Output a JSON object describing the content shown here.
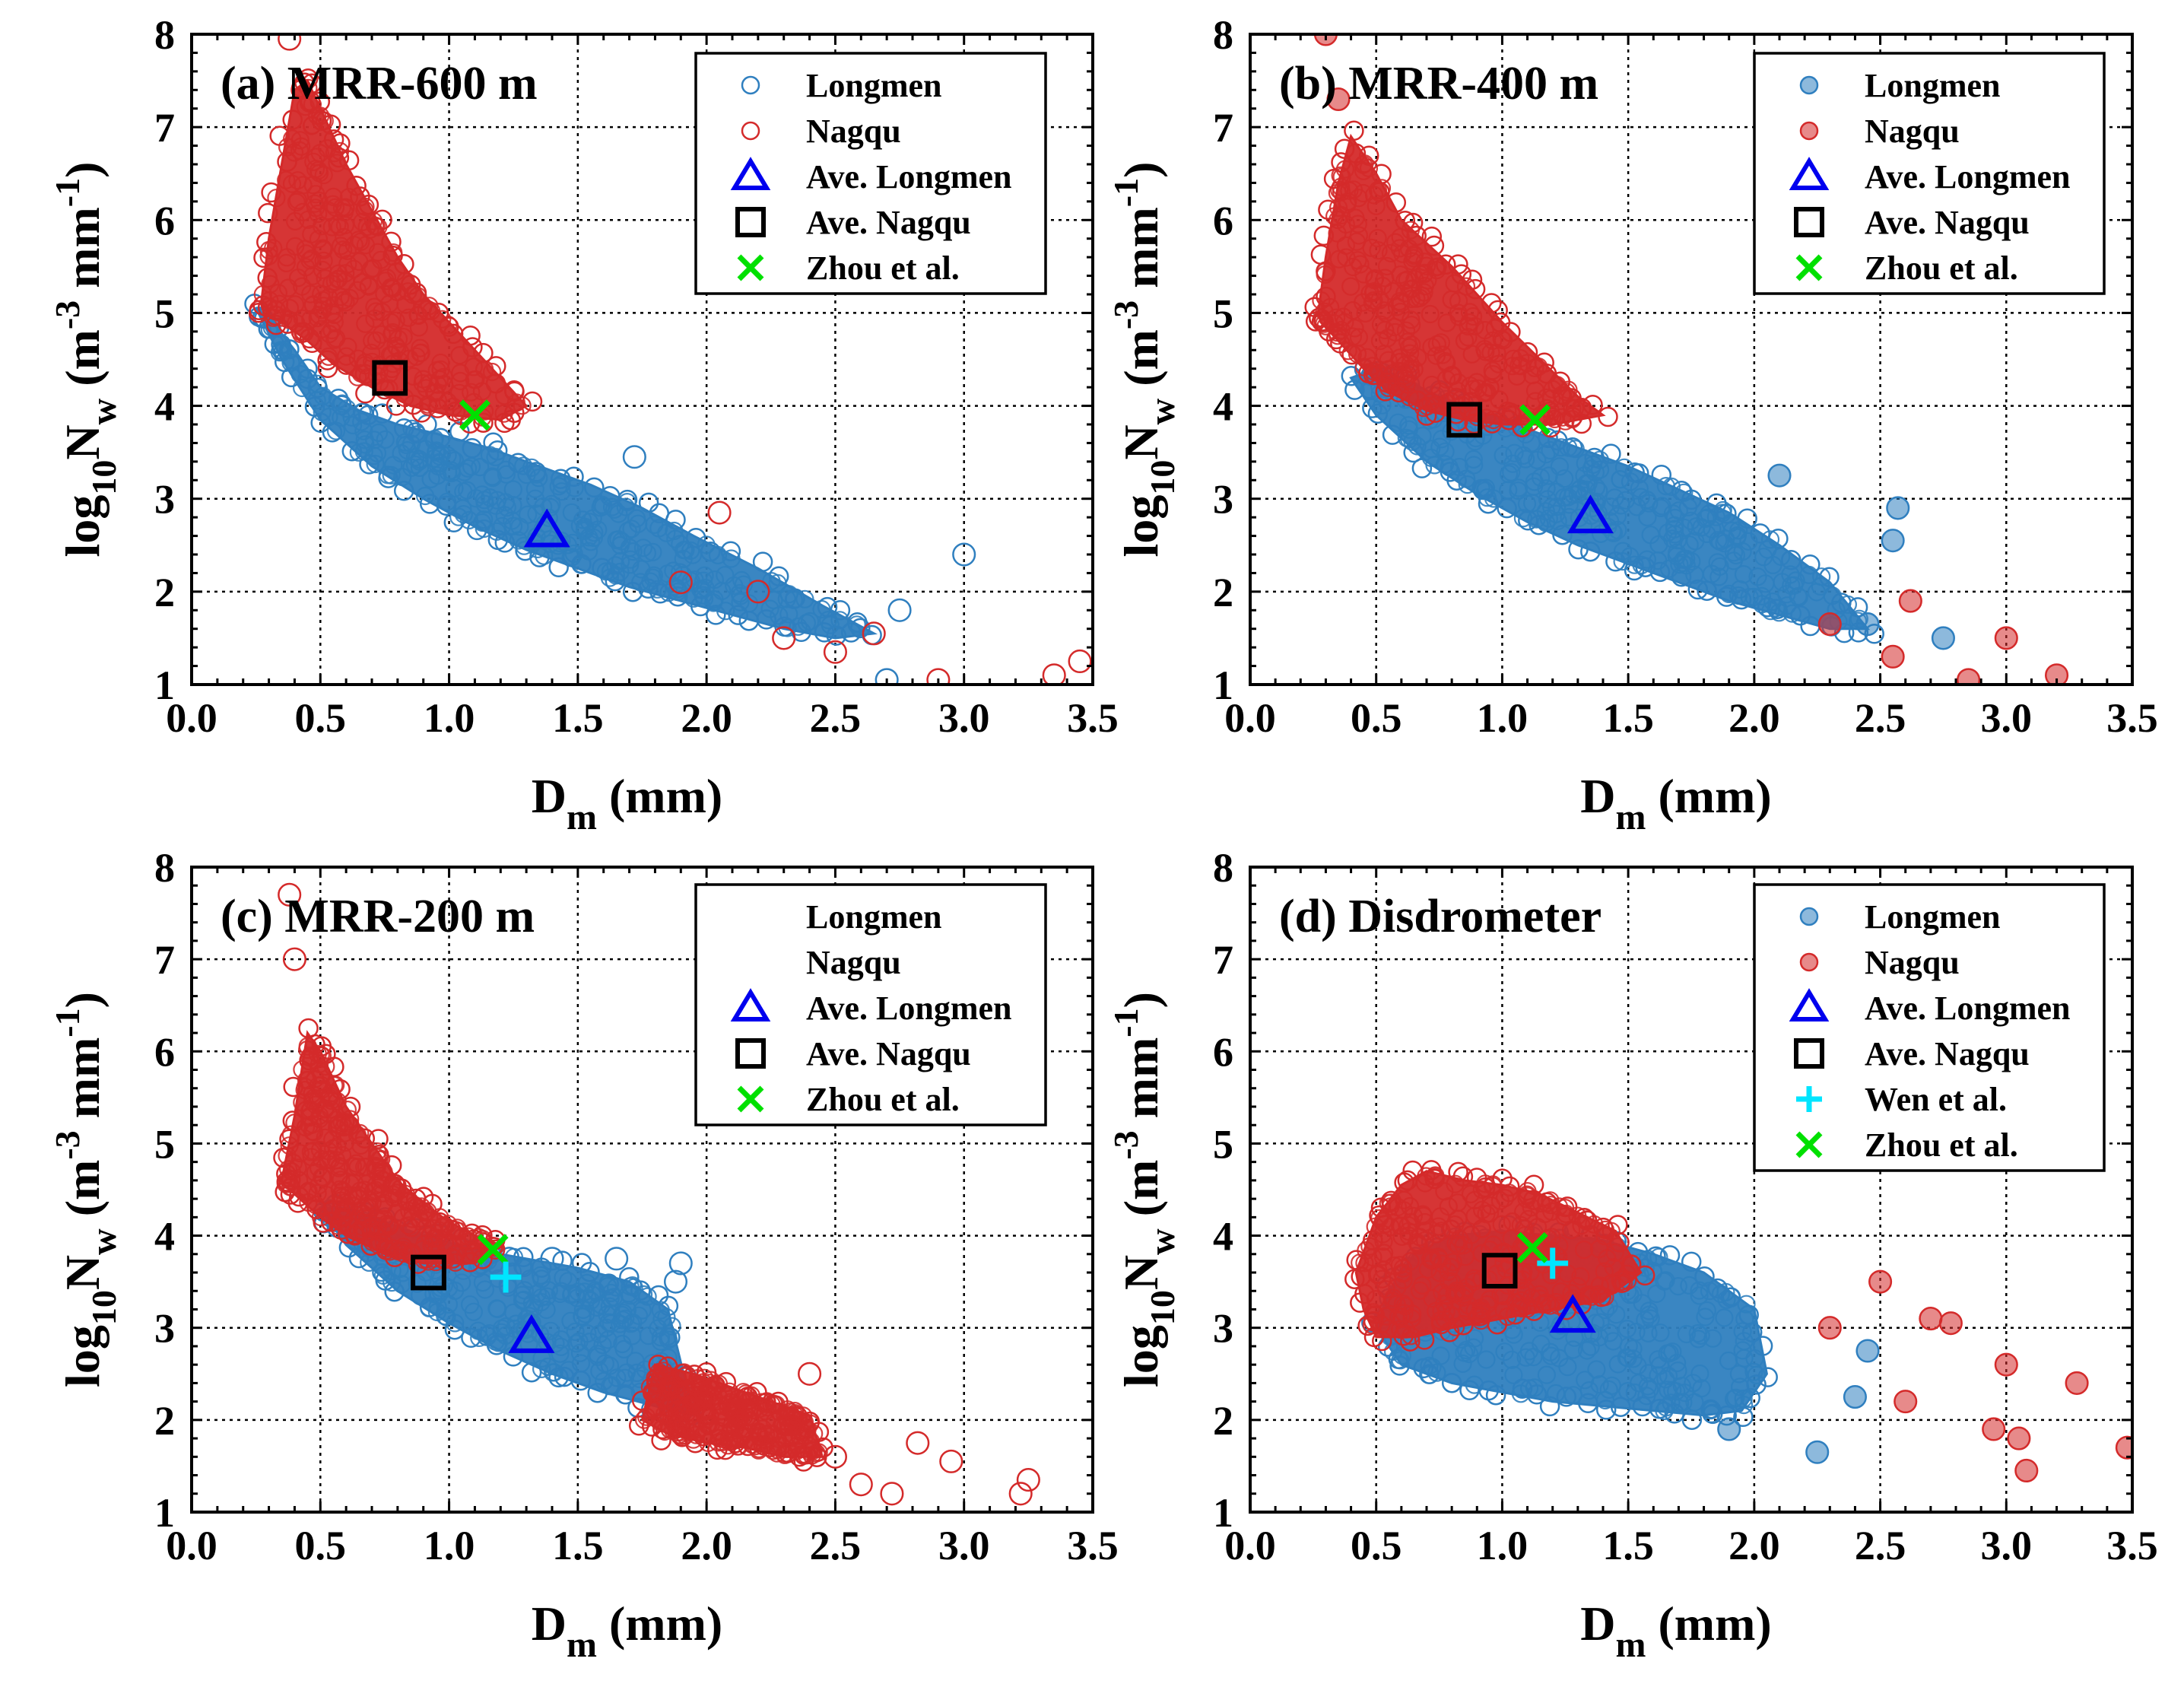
{
  "colors": {
    "longmen": "#2f7fbf",
    "nagqu": "#d42a2a",
    "ave_longmen": "#0000ee",
    "ave_nagqu": "#000000",
    "zhou": "#00e000",
    "wen": "#00e5ff"
  },
  "chart_data": [
    {
      "type": "scatter",
      "title": "(a) MRR-600 m",
      "xlabel": "D_m (mm)",
      "ylabel": "log10 N_w (m^-3 mm^-1)",
      "xlim": [
        0.0,
        3.5
      ],
      "ylim": [
        1,
        8
      ],
      "x_ticks": [
        "0.0",
        "0.5",
        "1.0",
        "1.5",
        "2.0",
        "2.5",
        "3.0",
        "3.5"
      ],
      "y_ticks": [
        "1",
        "2",
        "3",
        "4",
        "5",
        "6",
        "7",
        "8"
      ],
      "grid": true,
      "legend_position": "top-right",
      "legend": [
        "Longmen",
        "Nagqu",
        "Ave. Longmen",
        "Ave. Nagqu",
        "Zhou et al."
      ],
      "series": [
        {
          "name": "Longmen",
          "marker": "open-circle",
          "clouds": [
            {
              "x": [
                0.25,
                0.35,
                0.5,
                0.7,
                0.9,
                1.1,
                1.3,
                1.5,
                1.7,
                1.9,
                2.1,
                2.3,
                2.5,
                2.65,
                2.45,
                2.2,
                1.95,
                1.75,
                1.55,
                1.35,
                1.15,
                0.95,
                0.8,
                0.65,
                0.5,
                0.4,
                0.3
              ],
              "y": [
                5.05,
                4.5,
                3.85,
                3.35,
                3.0,
                2.7,
                2.45,
                2.25,
                2.05,
                1.9,
                1.75,
                1.6,
                1.5,
                1.55,
                1.85,
                2.25,
                2.6,
                2.9,
                3.15,
                3.35,
                3.55,
                3.7,
                3.8,
                3.95,
                4.2,
                4.6,
                4.95
              ]
            }
          ],
          "extra_points": [
            {
              "x": 3.0,
              "y": 2.4
            },
            {
              "x": 2.75,
              "y": 1.8
            },
            {
              "x": 1.72,
              "y": 3.45
            },
            {
              "x": 2.7,
              "y": 1.05
            }
          ]
        },
        {
          "name": "Nagqu",
          "marker": "open-circle",
          "clouds": [
            {
              "x": [
                0.27,
                0.3,
                0.35,
                0.4,
                0.45,
                0.5,
                0.55,
                0.6,
                0.7,
                0.8,
                0.9,
                1.0,
                1.1,
                1.2,
                1.3,
                1.2,
                1.0,
                0.85,
                0.7,
                0.55,
                0.45,
                0.35,
                0.28
              ],
              "y": [
                5.1,
                5.8,
                6.6,
                7.4,
                7.5,
                7.2,
                6.9,
                6.6,
                6.1,
                5.6,
                5.2,
                4.9,
                4.6,
                4.3,
                4.0,
                3.85,
                3.9,
                4.0,
                4.2,
                4.45,
                4.7,
                4.9,
                5.0
              ]
            }
          ],
          "extra_points": [
            {
              "x": 0.38,
              "y": 7.95
            },
            {
              "x": 2.05,
              "y": 2.85
            },
            {
              "x": 2.3,
              "y": 1.5
            },
            {
              "x": 2.5,
              "y": 1.35
            },
            {
              "x": 2.65,
              "y": 1.55
            },
            {
              "x": 2.9,
              "y": 1.05
            },
            {
              "x": 3.35,
              "y": 1.1
            },
            {
              "x": 3.45,
              "y": 1.25
            },
            {
              "x": 2.2,
              "y": 2.0
            },
            {
              "x": 1.9,
              "y": 2.1
            }
          ]
        },
        {
          "name": "Ave. Longmen",
          "marker": "triangle",
          "x": [
            1.38
          ],
          "y": [
            2.65
          ]
        },
        {
          "name": "Ave. Nagqu",
          "marker": "square",
          "x": [
            0.77
          ],
          "y": [
            4.3
          ]
        },
        {
          "name": "Zhou et al.",
          "marker": "x",
          "x": [
            1.1
          ],
          "y": [
            3.9
          ]
        }
      ]
    },
    {
      "type": "scatter",
      "title": "(b) MRR-400 m",
      "xlabel": "D_m (mm)",
      "ylabel": "log10 N_w (m^-3 mm^-1)",
      "xlim": [
        0.0,
        3.5
      ],
      "ylim": [
        1,
        8
      ],
      "x_ticks": [
        "0.0",
        "0.5",
        "1.0",
        "1.5",
        "2.0",
        "2.5",
        "3.0",
        "3.5"
      ],
      "y_ticks": [
        "1",
        "2",
        "3",
        "4",
        "5",
        "6",
        "7",
        "8"
      ],
      "grid": true,
      "legend_position": "top-right",
      "legend": [
        "Longmen",
        "Nagqu",
        "Ave. Longmen",
        "Ave. Nagqu",
        "Zhou et al."
      ],
      "series": [
        {
          "name": "Longmen",
          "marker": "filled-circle",
          "clouds": [
            {
              "x": [
                0.4,
                0.5,
                0.7,
                0.9,
                1.1,
                1.3,
                1.5,
                1.7,
                1.9,
                2.1,
                2.3,
                2.45,
                2.3,
                2.1,
                1.9,
                1.7,
                1.5,
                1.3,
                1.1,
                0.9,
                0.75,
                0.6,
                0.5
              ],
              "y": [
                4.3,
                3.9,
                3.4,
                3.05,
                2.75,
                2.5,
                2.3,
                2.1,
                1.9,
                1.75,
                1.6,
                1.6,
                2.1,
                2.5,
                2.85,
                3.1,
                3.35,
                3.55,
                3.75,
                3.95,
                4.1,
                4.3,
                4.4
              ]
            }
          ],
          "extra_points": [
            {
              "x": 2.1,
              "y": 3.25
            },
            {
              "x": 2.55,
              "y": 2.55
            },
            {
              "x": 2.57,
              "y": 2.9
            },
            {
              "x": 2.75,
              "y": 1.5
            },
            {
              "x": 2.45,
              "y": 1.65
            }
          ]
        },
        {
          "name": "Nagqu",
          "marker": "filled-circle",
          "clouds": [
            {
              "x": [
                0.27,
                0.3,
                0.35,
                0.4,
                0.5,
                0.6,
                0.7,
                0.8,
                0.9,
                1.0,
                1.15,
                1.3,
                1.4,
                1.2,
                1.0,
                0.85,
                0.7,
                0.55,
                0.45,
                0.35,
                0.28
              ],
              "y": [
                5.0,
                5.6,
                6.4,
                6.9,
                6.5,
                6.0,
                5.75,
                5.5,
                5.2,
                4.9,
                4.5,
                4.1,
                3.9,
                3.8,
                3.8,
                3.85,
                3.95,
                4.15,
                4.4,
                4.7,
                4.9
              ]
            }
          ],
          "extra_points": [
            {
              "x": 0.3,
              "y": 8.0
            },
            {
              "x": 0.35,
              "y": 7.3
            },
            {
              "x": 2.55,
              "y": 1.3
            },
            {
              "x": 2.62,
              "y": 1.9
            },
            {
              "x": 2.85,
              "y": 1.05
            },
            {
              "x": 3.0,
              "y": 1.5
            },
            {
              "x": 3.2,
              "y": 1.1
            },
            {
              "x": 2.3,
              "y": 1.65
            }
          ]
        },
        {
          "name": "Ave. Longmen",
          "marker": "triangle",
          "x": [
            1.35
          ],
          "y": [
            2.8
          ]
        },
        {
          "name": "Ave. Nagqu",
          "marker": "square",
          "x": [
            0.85
          ],
          "y": [
            3.85
          ]
        },
        {
          "name": "Zhou et al.",
          "marker": "x",
          "x": [
            1.13
          ],
          "y": [
            3.85
          ]
        }
      ]
    },
    {
      "type": "scatter",
      "title": "(c) MRR-200 m",
      "xlabel": "D_m (mm)",
      "ylabel": "log10 N_w (m^-3 mm^-1)",
      "xlim": [
        0.0,
        3.5
      ],
      "ylim": [
        1,
        8
      ],
      "x_ticks": [
        "0.0",
        "0.5",
        "1.0",
        "1.5",
        "2.0",
        "2.5",
        "3.0",
        "3.5"
      ],
      "y_ticks": [
        "1",
        "2",
        "3",
        "4",
        "5",
        "6",
        "7",
        "8"
      ],
      "grid": true,
      "legend_position": "top-right",
      "legend": [
        "Longmen",
        "Nagqu",
        "Ave. Longmen",
        "Ave. Nagqu",
        "Zhou et al."
      ],
      "series": [
        {
          "name": "Longmen",
          "marker": "open-circle",
          "clouds": [
            {
              "x": [
                0.5,
                0.6,
                0.8,
                1.0,
                1.2,
                1.4,
                1.6,
                1.8,
                1.95,
                1.85,
                1.7,
                1.5,
                1.3,
                1.1,
                0.9,
                0.75,
                0.6
              ],
              "y": [
                4.3,
                3.9,
                3.4,
                3.05,
                2.75,
                2.5,
                2.3,
                2.15,
                2.05,
                3.2,
                3.5,
                3.65,
                3.75,
                3.85,
                4.0,
                4.15,
                4.3
              ]
            }
          ],
          "extra_points": [
            {
              "x": 1.65,
              "y": 3.75
            },
            {
              "x": 1.9,
              "y": 3.7
            },
            {
              "x": 1.88,
              "y": 3.5
            },
            {
              "x": 1.4,
              "y": 3.75
            }
          ]
        },
        {
          "name": "Nagqu",
          "marker": "open-circle",
          "clouds": [
            {
              "x": [
                0.35,
                0.4,
                0.45,
                0.5,
                0.6,
                0.7,
                0.8,
                0.9,
                1.0,
                1.1,
                1.2,
                1.1,
                0.9,
                0.75,
                0.6,
                0.5,
                0.4,
                0.36
              ],
              "y": [
                4.6,
                5.3,
                6.2,
                6.0,
                5.4,
                5.0,
                4.6,
                4.35,
                4.15,
                4.0,
                3.9,
                3.7,
                3.7,
                3.8,
                4.0,
                4.2,
                4.45,
                4.55
              ]
            },
            {
              "x": [
                1.8,
                1.95,
                2.1,
                2.25,
                2.4,
                2.45,
                2.3,
                2.15,
                2.0,
                1.85,
                1.75
              ],
              "y": [
                2.6,
                2.5,
                2.35,
                2.2,
                2.05,
                1.6,
                1.6,
                1.7,
                1.75,
                1.85,
                2.0
              ]
            }
          ],
          "extra_points": [
            {
              "x": 0.4,
              "y": 7.0
            },
            {
              "x": 0.38,
              "y": 7.7
            },
            {
              "x": 2.5,
              "y": 1.6
            },
            {
              "x": 2.6,
              "y": 1.3
            },
            {
              "x": 2.72,
              "y": 1.2
            },
            {
              "x": 2.82,
              "y": 1.75
            },
            {
              "x": 2.95,
              "y": 1.55
            },
            {
              "x": 3.25,
              "y": 1.35
            },
            {
              "x": 3.22,
              "y": 1.2
            },
            {
              "x": 2.4,
              "y": 2.5
            }
          ]
        },
        {
          "name": "Ave. Longmen",
          "marker": "triangle",
          "x": [
            1.32
          ],
          "y": [
            2.9
          ]
        },
        {
          "name": "Ave. Nagqu",
          "marker": "square",
          "x": [
            0.92
          ],
          "y": [
            3.6
          ]
        },
        {
          "name": "Zhou et al.",
          "marker": "x",
          "x": [
            1.17
          ],
          "y": [
            3.85
          ]
        },
        {
          "name": "Wen et al.",
          "marker": "plus",
          "x": [
            1.22
          ],
          "y": [
            3.55
          ]
        }
      ]
    },
    {
      "type": "scatter",
      "title": "(d) Disdrometer",
      "xlabel": "D_m (mm)",
      "ylabel": "log10 N_w (m^-3 mm^-1)",
      "xlim": [
        0.0,
        3.5
      ],
      "ylim": [
        1,
        8
      ],
      "x_ticks": [
        "0.0",
        "0.5",
        "1.0",
        "1.5",
        "2.0",
        "2.5",
        "3.0",
        "3.5"
      ],
      "y_ticks": [
        "1",
        "2",
        "3",
        "4",
        "5",
        "6",
        "7",
        "8"
      ],
      "grid": true,
      "legend_position": "top-right",
      "legend": [
        "Longmen",
        "Nagqu",
        "Ave. Longmen",
        "Ave. Nagqu",
        "Wen et al.",
        "Zhou et al."
      ],
      "series": [
        {
          "name": "Longmen",
          "marker": "filled-circle",
          "clouds": [
            {
              "x": [
                0.5,
                0.6,
                0.8,
                1.0,
                1.2,
                1.4,
                1.6,
                1.8,
                1.95,
                2.05,
                2.0,
                1.8,
                1.6,
                1.4,
                1.2,
                1.0,
                0.8,
                0.65,
                0.55
              ],
              "y": [
                3.0,
                2.6,
                2.4,
                2.3,
                2.2,
                2.15,
                2.1,
                2.05,
                2.1,
                2.5,
                3.2,
                3.6,
                3.8,
                3.95,
                4.0,
                4.05,
                4.0,
                3.8,
                3.4
              ]
            }
          ],
          "extra_points": [
            {
              "x": 2.25,
              "y": 1.65
            },
            {
              "x": 2.4,
              "y": 2.25
            },
            {
              "x": 2.45,
              "y": 2.75
            },
            {
              "x": 1.9,
              "y": 1.9
            }
          ]
        },
        {
          "name": "Nagqu",
          "marker": "filled-circle",
          "clouds": [
            {
              "x": [
                0.42,
                0.5,
                0.6,
                0.7,
                0.85,
                1.0,
                1.15,
                1.3,
                1.45,
                1.55,
                1.4,
                1.2,
                1.0,
                0.8,
                0.65,
                0.5,
                0.45
              ],
              "y": [
                3.6,
                4.2,
                4.55,
                4.7,
                4.6,
                4.55,
                4.45,
                4.25,
                4.05,
                3.6,
                3.3,
                3.2,
                3.1,
                3.0,
                2.9,
                2.9,
                3.2
              ]
            }
          ],
          "extra_points": [
            {
              "x": 2.5,
              "y": 3.5
            },
            {
              "x": 2.7,
              "y": 3.1
            },
            {
              "x": 2.78,
              "y": 3.05
            },
            {
              "x": 3.0,
              "y": 2.6
            },
            {
              "x": 3.05,
              "y": 1.8
            },
            {
              "x": 3.08,
              "y": 1.45
            },
            {
              "x": 3.28,
              "y": 2.4
            },
            {
              "x": 3.48,
              "y": 1.7
            },
            {
              "x": 2.6,
              "y": 2.2
            },
            {
              "x": 2.3,
              "y": 3.0
            },
            {
              "x": 2.95,
              "y": 1.9
            }
          ]
        },
        {
          "name": "Ave. Longmen",
          "marker": "triangle",
          "x": [
            1.28
          ],
          "y": [
            3.12
          ]
        },
        {
          "name": "Ave. Nagqu",
          "marker": "square",
          "x": [
            0.99
          ],
          "y": [
            3.62
          ]
        },
        {
          "name": "Wen et al.",
          "marker": "plus",
          "x": [
            1.2
          ],
          "y": [
            3.7
          ]
        },
        {
          "name": "Zhou et al.",
          "marker": "x",
          "x": [
            1.12
          ],
          "y": [
            3.87
          ]
        }
      ]
    }
  ]
}
